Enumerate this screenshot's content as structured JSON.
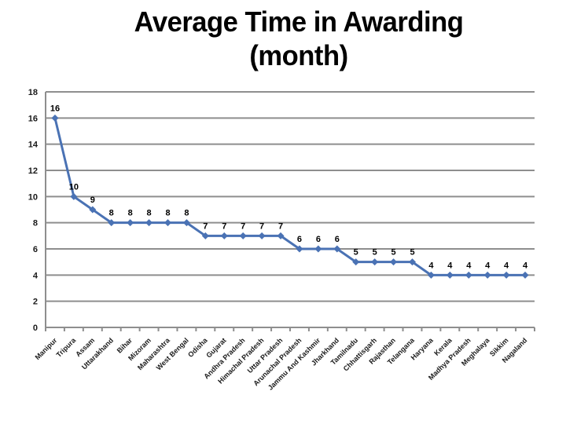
{
  "title": {
    "line1": "Average Time in Awarding",
    "line2": "(month)"
  },
  "colors": {
    "series": "#4a72b4",
    "grid": "#8e8e8e",
    "axis": "#8e8e8e",
    "text": "#000000",
    "background": "#ffffff"
  },
  "chart_data": {
    "type": "line",
    "title": "Average Time in Awarding (month)",
    "categories": [
      "Manipur",
      "Tripura",
      "Assam",
      "Uttarakhand",
      "Bihar",
      "Mizoram",
      "Maharashtra",
      "West Bengal",
      "Odisha",
      "Gujarat",
      "Andhra Pradesh",
      "Himachal Pradesh",
      "Uttar Pradesh",
      "Arunachal Pradesh",
      "Jammu And Kashmir",
      "Jharkhand",
      "Tamilnadu",
      "Chhattisgarh",
      "Rajasthan",
      "Telangana",
      "Haryana",
      "Kerala",
      "Madhya Pradesh",
      "Meghalaya",
      "Sikkim",
      "Nagaland"
    ],
    "values": [
      16,
      10,
      9,
      8,
      8,
      8,
      8,
      8,
      7,
      7,
      7,
      7,
      7,
      6,
      6,
      6,
      5,
      5,
      5,
      5,
      4,
      4,
      4,
      4,
      4,
      4
    ],
    "xlabel": "",
    "ylabel": "",
    "ylim": [
      0,
      18
    ],
    "ytick_interval": 2,
    "yticks": [
      0,
      2,
      4,
      6,
      8,
      10,
      12,
      14,
      16,
      18
    ],
    "grid": true,
    "legend": "none",
    "data_labels": true,
    "marker": "diamond"
  }
}
